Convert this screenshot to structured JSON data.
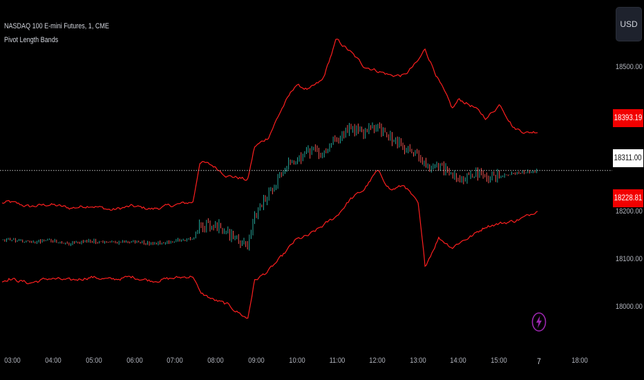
{
  "header": {
    "symbol_line": "NASDAQ 100 E-mini Futures, 1, CME",
    "indicator_line": "Pivot Length Bands"
  },
  "currency_button": {
    "label": "USD"
  },
  "price_axis": {
    "ticks": [
      "18500.00",
      "18200.00",
      "18100.00",
      "18000.00"
    ],
    "upper_band_label": "18393.19",
    "last_price_label": "18311.00",
    "lower_band_label": "18228.81"
  },
  "time_axis": {
    "ticks": [
      "03:00",
      "04:00",
      "05:00",
      "06:00",
      "07:00",
      "08:00",
      "09:00",
      "10:00",
      "11:00",
      "12:00",
      "13:00",
      "14:00",
      "15:00",
      "7",
      "18:00"
    ]
  },
  "icons": {
    "alert": "lightning-icon"
  },
  "colors": {
    "background": "#000000",
    "band": "#ff1f1f",
    "badge_red": "#f20000",
    "candle_up": "#26a69a",
    "candle_down": "#ef5350",
    "axis_text": "#b2b5be",
    "accent_purple": "#9c27b0"
  },
  "chart_data": {
    "type": "line",
    "ylim": [
      17985,
      18610
    ],
    "x": [
      "02:50",
      "03:00",
      "03:30",
      "04:00",
      "04:30",
      "05:00",
      "05:30",
      "06:00",
      "06:30",
      "07:00",
      "07:30",
      "07:40",
      "08:00",
      "08:20",
      "08:40",
      "08:50",
      "09:00",
      "09:20",
      "09:40",
      "10:00",
      "10:20",
      "10:40",
      "11:00",
      "11:20",
      "11:40",
      "12:00",
      "12:20",
      "12:40",
      "13:00",
      "13:10",
      "13:30",
      "13:50",
      "14:00",
      "14:20",
      "14:40",
      "15:00",
      "15:20",
      "15:40",
      "15:55"
    ],
    "series": [
      {
        "name": "",
        "values": [
          18242,
          18245,
          18235,
          18240,
          18232,
          18238,
          18228,
          18236,
          18230,
          18238,
          18245,
          18330,
          18320,
          18300,
          18295,
          18290,
          18360,
          18380,
          18440,
          18490,
          18480,
          18500,
          18585,
          18560,
          18530,
          18520,
          18510,
          18510,
          18540,
          18565,
          18500,
          18440,
          18460,
          18445,
          18420,
          18450,
          18400,
          18390,
          18393
        ]
      },
      {
        "name": "",
        "values": [
          18165,
          18168,
          18160,
          18165,
          18158,
          18163,
          18160,
          18162,
          18158,
          18163,
          18168,
          18195,
          18200,
          18180,
          18160,
          18150,
          18215,
          18260,
          18310,
          18335,
          18350,
          18345,
          18380,
          18400,
          18390,
          18405,
          18380,
          18355,
          18345,
          18320,
          18320,
          18300,
          18295,
          18305,
          18295,
          18300,
          18305,
          18308,
          18311
        ]
      },
      {
        "name": "",
        "values": [
          18078,
          18085,
          18075,
          18085,
          18080,
          18088,
          18082,
          18088,
          18080,
          18085,
          18090,
          18055,
          18040,
          18030,
          18010,
          18000,
          18080,
          18100,
          18130,
          18165,
          18175,
          18195,
          18215,
          18250,
          18270,
          18310,
          18270,
          18280,
          18240,
          18110,
          18170,
          18150,
          18160,
          18175,
          18195,
          18200,
          18205,
          18215,
          18229
        ]
      }
    ]
  }
}
